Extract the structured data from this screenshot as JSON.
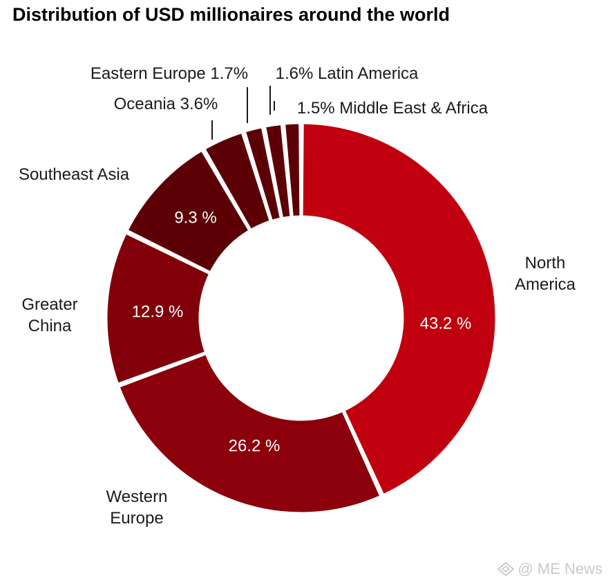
{
  "chart_data": {
    "type": "pie",
    "variant": "donut",
    "title": "Distribution of USD millionaires around the world",
    "categories": [
      "North America",
      "Western Europe",
      "Greater China",
      "Southeast Asia",
      "Oceania",
      "Eastern Europe",
      "Latin America",
      "Middle East & Africa"
    ],
    "values": [
      43.2,
      26.2,
      12.9,
      9.3,
      3.6,
      1.7,
      1.6,
      1.5
    ],
    "unit": "%",
    "start": "top, clockwise",
    "colors": [
      "#c0000e",
      "#8b000a",
      "#820009",
      "#5c0006",
      "#5c0006",
      "#5c0006",
      "#5c0006",
      "#5c0006"
    ],
    "slice_labels": [
      {
        "outer": [
          "North",
          "America"
        ],
        "inner": "43.2 %"
      },
      {
        "outer": [
          "Western",
          "Europe"
        ],
        "inner": "26.2 %"
      },
      {
        "outer": [
          "Greater",
          "China"
        ],
        "inner": "12.9 %"
      },
      {
        "outer": [
          "Southeast Asia"
        ],
        "inner": "9.3 %"
      },
      {
        "outer": [
          "Oceania 3.6%"
        ],
        "inner": ""
      },
      {
        "outer": [
          "Eastern Europe 1.7%"
        ],
        "inner": ""
      },
      {
        "outer": [
          "1.6% Latin America"
        ],
        "inner": ""
      },
      {
        "outer": [
          "1.5% Middle East & Africa"
        ],
        "inner": ""
      }
    ]
  },
  "watermark": {
    "text": "@ ME News",
    "icon": "diamond-logo-icon"
  }
}
